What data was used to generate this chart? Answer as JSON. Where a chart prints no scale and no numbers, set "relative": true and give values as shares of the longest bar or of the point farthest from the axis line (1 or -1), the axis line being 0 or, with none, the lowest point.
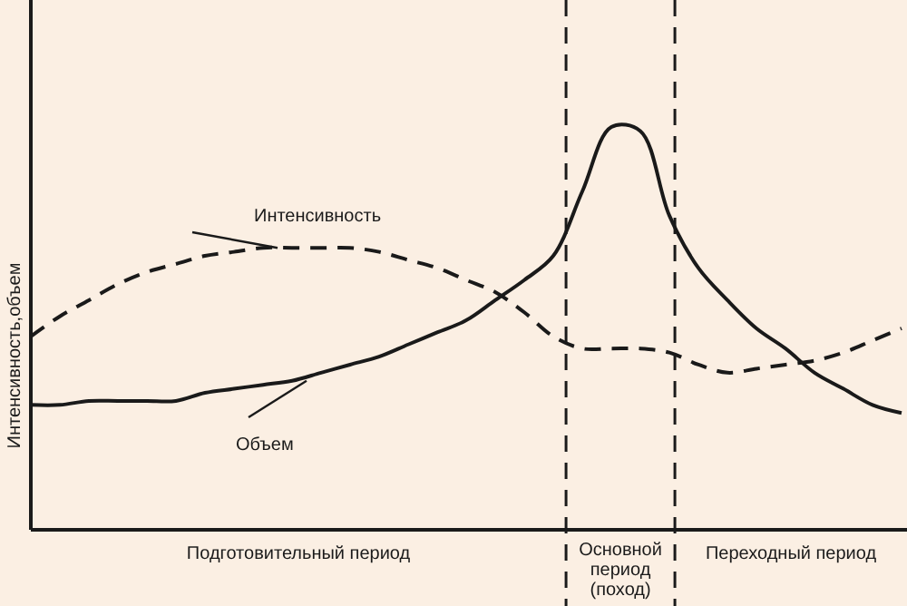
{
  "chart_data": {
    "type": "line",
    "relative": true,
    "ylabel": "Интенсивность,объем",
    "categories": [
      null,
      null,
      null,
      null,
      null,
      null,
      null,
      null,
      null,
      null,
      null,
      null,
      null,
      null,
      null,
      null,
      null,
      null,
      null,
      null,
      null,
      null,
      null,
      null,
      null,
      null,
      null,
      null,
      null,
      null,
      null
    ],
    "series": [
      {
        "name": "Интенсивность",
        "color": "#1a1a1a",
        "line_style": "dashed",
        "values": [
          0.48,
          0.53,
          0.57,
          0.61,
          0.64,
          0.66,
          0.68,
          0.69,
          0.7,
          0.7,
          0.7,
          0.7,
          0.69,
          0.67,
          0.65,
          0.62,
          0.59,
          0.54,
          0.48,
          0.45,
          0.45,
          0.45,
          0.44,
          0.41,
          0.39,
          0.4,
          0.41,
          0.42,
          0.44,
          0.47,
          0.5
        ]
      },
      {
        "name": "Объем",
        "color": "#1a1a1a",
        "line_style": "solid",
        "values": [
          0.31,
          0.31,
          0.32,
          0.32,
          0.32,
          0.32,
          0.34,
          0.35,
          0.36,
          0.37,
          0.39,
          0.41,
          0.43,
          0.46,
          0.49,
          0.52,
          0.57,
          0.62,
          0.68,
          0.84,
          1.0,
          0.99,
          0.78,
          0.65,
          0.57,
          0.5,
          0.45,
          0.39,
          0.35,
          0.31,
          0.29
        ]
      }
    ],
    "annotations": [
      "Подготовительный период",
      "Основной период (поход)",
      "Переходный период"
    ]
  }
}
